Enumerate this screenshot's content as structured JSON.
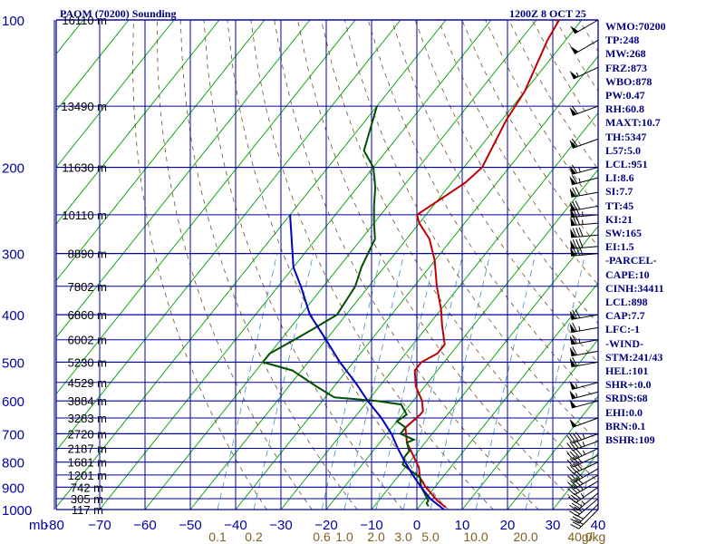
{
  "header": {
    "station": "PAOM (70200) Sounding",
    "datetime": "1200Z  8 OCT 25"
  },
  "sidebar": {
    "items": [
      "WMO:70200",
      "TP:248",
      "MW:268",
      "FRZ:873",
      "WBO:878",
      "PW:0.47",
      "RH:60.8",
      "MAXT:10.7",
      "TH:5347",
      "L57:5.0",
      "LCL:951",
      "LI:8.6",
      "SI:7.7",
      "TT:45",
      "KI:21",
      "SW:165",
      "EI:1.5",
      "-PARCEL-",
      "CAPE:10",
      "CINH:34411",
      "LCL:898",
      "CAP:7.7",
      "LFC:-1",
      "-WIND-",
      "STM:241/43",
      "HEL:101",
      "SHR+:0.0",
      "SRDS:68",
      "EHI:0.0",
      "BRN:0.1",
      "BSHR:109"
    ]
  },
  "colors": {
    "grid": "#0000a0",
    "isotherm": "#00a000",
    "dry_adiabat": "#705020",
    "mixing_ratio": "#4090c0",
    "temperature": "#c00000",
    "dewpoint": "#005000",
    "parcel": "#0000c0",
    "text": "#000080"
  },
  "chart_data": {
    "type": "line",
    "title": "PAOM (70200) Sounding",
    "xlabel": "",
    "ylabel": "mb",
    "x_unit_label": "mb",
    "xlim": [
      -80,
      40
    ],
    "ylim": [
      1000,
      100
    ],
    "y_scale": "log",
    "x_ticks": [
      -80,
      -70,
      -60,
      -50,
      -40,
      -30,
      -20,
      -10,
      0,
      10,
      20,
      30,
      40
    ],
    "x_tick_labels": [
      "-80",
      "−70",
      "−60",
      "−50",
      "−40",
      "−30",
      "−20",
      "−10",
      "0",
      "10",
      "20",
      "30",
      "40"
    ],
    "y_ticks": [
      100,
      200,
      300,
      400,
      500,
      600,
      700,
      800,
      900,
      1000
    ],
    "y_tick_labels": [
      "100",
      "200",
      "300",
      "400",
      "500",
      "600",
      "700",
      "800",
      "900",
      "1000"
    ],
    "height_labels": [
      {
        "p": 100,
        "label": "16110 m"
      },
      {
        "p": 150,
        "label": "13490 m"
      },
      {
        "p": 200,
        "label": "11630 m"
      },
      {
        "p": 250,
        "label": "10110 m"
      },
      {
        "p": 300,
        "label": "8890 m"
      },
      {
        "p": 350,
        "label": "7802 m"
      },
      {
        "p": 400,
        "label": "6860 m"
      },
      {
        "p": 450,
        "label": "6002 m"
      },
      {
        "p": 500,
        "label": "5230 m"
      },
      {
        "p": 550,
        "label": "4529 m"
      },
      {
        "p": 600,
        "label": "3884 m"
      },
      {
        "p": 650,
        "label": "3283 m"
      },
      {
        "p": 700,
        "label": "2720 m"
      },
      {
        "p": 750,
        "label": "2187 m"
      },
      {
        "p": 800,
        "label": "1681 m"
      },
      {
        "p": 850,
        "label": "1201 m"
      },
      {
        "p": 900,
        "label": "742 m"
      },
      {
        "p": 950,
        "label": "305 m"
      },
      {
        "p": 1000,
        "label": "117 m"
      }
    ],
    "mixing_ratio_labels": [
      "0.1",
      "0.2",
      "0.6",
      "1.0",
      "2.0",
      "3.0",
      "5.0",
      "10.0",
      "20.0",
      "40.0",
      "g/kg"
    ],
    "mixing_ratio_positions": [
      -44,
      -36,
      -21,
      -16,
      -9,
      -3,
      3,
      13,
      24,
      36,
      39
    ],
    "series": [
      {
        "name": "",
        "role": "temperature",
        "points": [
          [
            6,
            990
          ],
          [
            3,
            960
          ],
          [
            -2,
            900
          ],
          [
            -5,
            860
          ],
          [
            -7,
            820
          ],
          [
            -10,
            780
          ],
          [
            -14,
            730
          ],
          [
            -17,
            680
          ],
          [
            -16,
            640
          ],
          [
            -16,
            630
          ],
          [
            -18,
            600
          ],
          [
            -22,
            560
          ],
          [
            -25,
            520
          ],
          [
            -25,
            500
          ],
          [
            -23,
            480
          ],
          [
            -23,
            460
          ],
          [
            -27,
            420
          ],
          [
            -30,
            390
          ],
          [
            -35,
            350
          ],
          [
            -40,
            310
          ],
          [
            -45,
            280
          ],
          [
            -50,
            260
          ],
          [
            -52,
            250
          ],
          [
            -47,
            215
          ],
          [
            -46,
            200
          ],
          [
            -49,
            160
          ],
          [
            -50,
            140
          ],
          [
            -54,
            110
          ],
          [
            -55,
            100
          ]
        ]
      },
      {
        "name": "",
        "role": "dewpoint",
        "points": [
          [
            2,
            985
          ],
          [
            1,
            970
          ],
          [
            1,
            960
          ],
          [
            -3,
            900
          ],
          [
            -5,
            860
          ],
          [
            -11,
            810
          ],
          [
            -12,
            780
          ],
          [
            -12,
            760
          ],
          [
            -14,
            730
          ],
          [
            -13,
            720
          ],
          [
            -17,
            700
          ],
          [
            -17,
            680
          ],
          [
            -20,
            660
          ],
          [
            -19,
            640
          ],
          [
            -22,
            610
          ],
          [
            -28,
            600
          ],
          [
            -38,
            590
          ],
          [
            -44,
            560
          ],
          [
            -52,
            520
          ],
          [
            -60,
            500
          ],
          [
            -60,
            480
          ],
          [
            -57,
            450
          ],
          [
            -55,
            430
          ],
          [
            -52,
            400
          ],
          [
            -53,
            350
          ],
          [
            -55,
            320
          ],
          [
            -57,
            280
          ],
          [
            -60,
            260
          ],
          [
            -63,
            240
          ],
          [
            -66,
            220
          ],
          [
            -70,
            200
          ],
          [
            -75,
            185
          ],
          [
            -80,
            150
          ]
        ]
      },
      {
        "name": "",
        "role": "parcel",
        "points": [
          [
            6,
            1000
          ],
          [
            1,
            950
          ],
          [
            -3,
            900
          ],
          [
            -7,
            850
          ],
          [
            -11,
            800
          ],
          [
            -15,
            750
          ],
          [
            -19,
            700
          ],
          [
            -24,
            650
          ],
          [
            -30,
            600
          ],
          [
            -36,
            550
          ],
          [
            -43,
            500
          ],
          [
            -50,
            450
          ],
          [
            -58,
            400
          ],
          [
            -65,
            350
          ],
          [
            -70,
            320
          ],
          [
            -80,
            250
          ]
        ]
      }
    ],
    "wind_levels": [
      {
        "p": 1000,
        "dir": 225,
        "kt": 30
      },
      {
        "p": 975,
        "dir": 225,
        "kt": 30
      },
      {
        "p": 950,
        "dir": 230,
        "kt": 30
      },
      {
        "p": 925,
        "dir": 230,
        "kt": 35
      },
      {
        "p": 900,
        "dir": 235,
        "kt": 35
      },
      {
        "p": 875,
        "dir": 240,
        "kt": 35
      },
      {
        "p": 850,
        "dir": 240,
        "kt": 40
      },
      {
        "p": 825,
        "dir": 240,
        "kt": 40
      },
      {
        "p": 800,
        "dir": 245,
        "kt": 40
      },
      {
        "p": 775,
        "dir": 245,
        "kt": 40
      },
      {
        "p": 750,
        "dir": 245,
        "kt": 45
      },
      {
        "p": 725,
        "dir": 250,
        "kt": 45
      },
      {
        "p": 700,
        "dir": 250,
        "kt": 45
      },
      {
        "p": 650,
        "dir": 250,
        "kt": 50
      },
      {
        "p": 600,
        "dir": 255,
        "kt": 50
      },
      {
        "p": 575,
        "dir": 255,
        "kt": 55
      },
      {
        "p": 550,
        "dir": 255,
        "kt": 55
      },
      {
        "p": 500,
        "dir": 260,
        "kt": 60
      },
      {
        "p": 475,
        "dir": 260,
        "kt": 60
      },
      {
        "p": 450,
        "dir": 260,
        "kt": 65
      },
      {
        "p": 425,
        "dir": 260,
        "kt": 65
      },
      {
        "p": 400,
        "dir": 260,
        "kt": 70
      },
      {
        "p": 300,
        "dir": 265,
        "kt": 80
      },
      {
        "p": 290,
        "dir": 265,
        "kt": 80
      },
      {
        "p": 275,
        "dir": 265,
        "kt": 80
      },
      {
        "p": 260,
        "dir": 265,
        "kt": 75
      },
      {
        "p": 250,
        "dir": 265,
        "kt": 75
      },
      {
        "p": 240,
        "dir": 260,
        "kt": 70
      },
      {
        "p": 225,
        "dir": 260,
        "kt": 70
      },
      {
        "p": 210,
        "dir": 255,
        "kt": 65
      },
      {
        "p": 200,
        "dir": 255,
        "kt": 65
      },
      {
        "p": 175,
        "dir": 250,
        "kt": 60
      },
      {
        "p": 150,
        "dir": 250,
        "kt": 60
      },
      {
        "p": 125,
        "dir": 245,
        "kt": 55
      },
      {
        "p": 110,
        "dir": 240,
        "kt": 50
      },
      {
        "p": 100,
        "dir": 240,
        "kt": 50
      }
    ],
    "grid": true
  }
}
